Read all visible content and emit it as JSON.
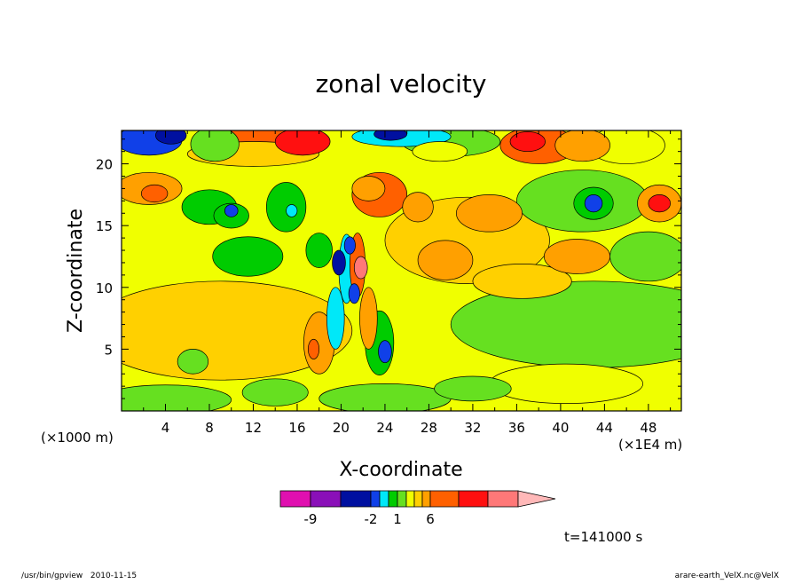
{
  "chart_data": {
    "type": "heatmap",
    "title": "zonal velocity",
    "xlabel": "X-coordinate",
    "ylabel": "Z-coordinate",
    "x_unit_left": "(×1000 m)",
    "x_unit_right": "(×1E4 m)",
    "xlim": [
      0,
      51
    ],
    "ylim": [
      0,
      22.7
    ],
    "x_ticks": [
      4,
      8,
      12,
      16,
      20,
      24,
      28,
      32,
      36,
      40,
      44,
      48
    ],
    "x_tick_labels": [
      "4",
      "8",
      "12",
      "16",
      "20",
      "24",
      "28",
      "32",
      "36",
      "40",
      "44",
      "48"
    ],
    "y_ticks": [
      5,
      10,
      15,
      20
    ],
    "y_tick_labels": [
      "5",
      "10",
      "15",
      "20"
    ],
    "colorbar": {
      "levels": [
        -12,
        -9,
        -6,
        -2,
        -1,
        0,
        1,
        2,
        3,
        4,
        6,
        9,
        12
      ],
      "colors": [
        "#e010b0",
        "#8a10b8",
        "#0010a0",
        "#1040e8",
        "#00e8f8",
        "#00cc00",
        "#66e020",
        "#f0ff00",
        "#ffd000",
        "#ffa000",
        "#ff6000",
        "#ff1010",
        "#ff7878",
        "#ffb8b8"
      ],
      "tick_labels": [
        "-9",
        "-2",
        "1",
        "6"
      ],
      "tick_values": [
        -9,
        -2,
        1,
        6
      ]
    },
    "time_label": "t=141000 s",
    "footer_left": "/usr/bin/gpview   2010-11-15",
    "footer_right": "arare-earth_VelX.nc@VelX",
    "features": [
      {
        "x": 2.5,
        "z": 21.9,
        "rx": 3.0,
        "rz": 1.2,
        "v": -6
      },
      {
        "x": 4.5,
        "z": 22.3,
        "rx": 1.4,
        "rz": 0.7,
        "v": -9
      },
      {
        "x": 8.5,
        "z": 21.6,
        "rx": 2.2,
        "rz": 1.4,
        "v": 0
      },
      {
        "x": 13.0,
        "z": 21.8,
        "rx": 4.5,
        "rz": 1.5,
        "v": 4
      },
      {
        "x": 16.5,
        "z": 21.8,
        "rx": 2.5,
        "rz": 1.1,
        "v": 6
      },
      {
        "x": 12.0,
        "z": 20.8,
        "rx": 6.0,
        "rz": 1.0,
        "v": 2
      },
      {
        "x": 2.5,
        "z": 18.0,
        "rx": 3.0,
        "rz": 1.3,
        "v": 3
      },
      {
        "x": 3.0,
        "z": 17.6,
        "rx": 1.2,
        "rz": 0.7,
        "v": 4
      },
      {
        "x": 8.0,
        "z": 16.5,
        "rx": 2.5,
        "rz": 1.4,
        "v": -1
      },
      {
        "x": 10.0,
        "z": 15.8,
        "rx": 1.6,
        "rz": 1.0,
        "v": -1
      },
      {
        "x": 10.0,
        "z": 16.2,
        "rx": 0.6,
        "rz": 0.5,
        "v": -6
      },
      {
        "x": 11.5,
        "z": 12.5,
        "rx": 3.2,
        "rz": 1.6,
        "v": -1
      },
      {
        "x": 15.0,
        "z": 16.5,
        "rx": 1.8,
        "rz": 2.0,
        "v": -1
      },
      {
        "x": 15.5,
        "z": 16.2,
        "rx": 0.5,
        "rz": 0.5,
        "v": -2
      },
      {
        "x": 18.0,
        "z": 13.0,
        "rx": 1.2,
        "rz": 1.4,
        "v": -1
      },
      {
        "x": 9.0,
        "z": 6.5,
        "rx": 12.0,
        "rz": 4.0,
        "v": 2
      },
      {
        "x": 6.5,
        "z": 4.0,
        "rx": 1.4,
        "rz": 1.0,
        "v": 0
      },
      {
        "x": 23.5,
        "z": 17.5,
        "rx": 2.5,
        "rz": 1.8,
        "v": 4
      },
      {
        "x": 22.5,
        "z": 18.0,
        "rx": 1.5,
        "rz": 1.0,
        "v": 3
      },
      {
        "x": 25.5,
        "z": 22.2,
        "rx": 4.5,
        "rz": 0.8,
        "v": -2
      },
      {
        "x": 24.5,
        "z": 22.4,
        "rx": 1.5,
        "rz": 0.5,
        "v": -9
      },
      {
        "x": 30.0,
        "z": 21.8,
        "rx": 4.5,
        "rz": 1.2,
        "v": 0
      },
      {
        "x": 29.0,
        "z": 21.0,
        "rx": 2.5,
        "rz": 0.8,
        "v": 1
      },
      {
        "x": 31.5,
        "z": 13.8,
        "rx": 7.5,
        "rz": 3.5,
        "v": 2
      },
      {
        "x": 29.5,
        "z": 12.2,
        "rx": 2.5,
        "rz": 1.6,
        "v": 3
      },
      {
        "x": 33.5,
        "z": 16.0,
        "rx": 3.0,
        "rz": 1.5,
        "v": 3
      },
      {
        "x": 27.0,
        "z": 16.5,
        "rx": 1.4,
        "rz": 1.2,
        "v": 3
      },
      {
        "x": 36.5,
        "z": 10.5,
        "rx": 4.5,
        "rz": 1.4,
        "v": 2
      },
      {
        "x": 41.5,
        "z": 12.5,
        "rx": 3.0,
        "rz": 1.4,
        "v": 3
      },
      {
        "x": 38.0,
        "z": 21.5,
        "rx": 3.5,
        "rz": 1.5,
        "v": 4
      },
      {
        "x": 42.0,
        "z": 21.5,
        "rx": 2.5,
        "rz": 1.3,
        "v": 3
      },
      {
        "x": 37.0,
        "z": 21.8,
        "rx": 1.6,
        "rz": 0.8,
        "v": 6
      },
      {
        "x": 46.0,
        "z": 21.5,
        "rx": 3.5,
        "rz": 1.5,
        "v": 1
      },
      {
        "x": 42.0,
        "z": 17.0,
        "rx": 6.0,
        "rz": 2.5,
        "v": 0
      },
      {
        "x": 43.0,
        "z": 16.8,
        "rx": 1.8,
        "rz": 1.3,
        "v": -1
      },
      {
        "x": 43.0,
        "z": 16.8,
        "rx": 0.8,
        "rz": 0.7,
        "v": -6
      },
      {
        "x": 49.0,
        "z": 16.8,
        "rx": 2.0,
        "rz": 1.5,
        "v": 3
      },
      {
        "x": 49.0,
        "z": 16.8,
        "rx": 1.0,
        "rz": 0.7,
        "v": 6
      },
      {
        "x": 43.0,
        "z": 7.0,
        "rx": 13.0,
        "rz": 3.5,
        "v": 0
      },
      {
        "x": 48.0,
        "z": 12.5,
        "rx": 3.5,
        "rz": 2.0,
        "v": 0
      },
      {
        "x": 40.5,
        "z": 2.2,
        "rx": 7.0,
        "rz": 1.6,
        "v": 1
      },
      {
        "x": 32.0,
        "z": 1.8,
        "rx": 3.5,
        "rz": 1.0,
        "v": 0
      },
      {
        "x": 24.0,
        "z": 1.0,
        "rx": 6.0,
        "rz": 1.2,
        "v": 0
      },
      {
        "x": 4.0,
        "z": 0.9,
        "rx": 6.0,
        "rz": 1.2,
        "v": 0
      },
      {
        "x": 14.0,
        "z": 1.5,
        "rx": 3.0,
        "rz": 1.1,
        "v": 0
      },
      {
        "x": 18.0,
        "z": 5.5,
        "rx": 1.4,
        "rz": 2.5,
        "v": 3
      },
      {
        "x": 17.5,
        "z": 5.0,
        "rx": 0.5,
        "rz": 0.8,
        "v": 4
      },
      {
        "x": 23.5,
        "z": 5.5,
        "rx": 1.3,
        "rz": 2.6,
        "v": -1
      },
      {
        "x": 24.0,
        "z": 4.8,
        "rx": 0.6,
        "rz": 0.9,
        "v": -6
      },
      {
        "x": 19.5,
        "z": 7.5,
        "rx": 0.8,
        "rz": 2.5,
        "v": -2
      },
      {
        "x": 22.5,
        "z": 7.5,
        "rx": 0.8,
        "rz": 2.5,
        "v": 3
      },
      {
        "x": 20.5,
        "z": 11.5,
        "rx": 0.7,
        "rz": 2.8,
        "v": -2
      },
      {
        "x": 21.5,
        "z": 11.8,
        "rx": 0.7,
        "rz": 2.6,
        "v": 4
      },
      {
        "x": 19.8,
        "z": 12.0,
        "rx": 0.6,
        "rz": 1.0,
        "v": -9
      },
      {
        "x": 21.2,
        "z": 9.5,
        "rx": 0.5,
        "rz": 0.8,
        "v": -6
      },
      {
        "x": 21.8,
        "z": 11.6,
        "rx": 0.6,
        "rz": 0.9,
        "v": 9
      },
      {
        "x": 20.8,
        "z": 13.4,
        "rx": 0.5,
        "rz": 0.7,
        "v": -6
      }
    ]
  }
}
